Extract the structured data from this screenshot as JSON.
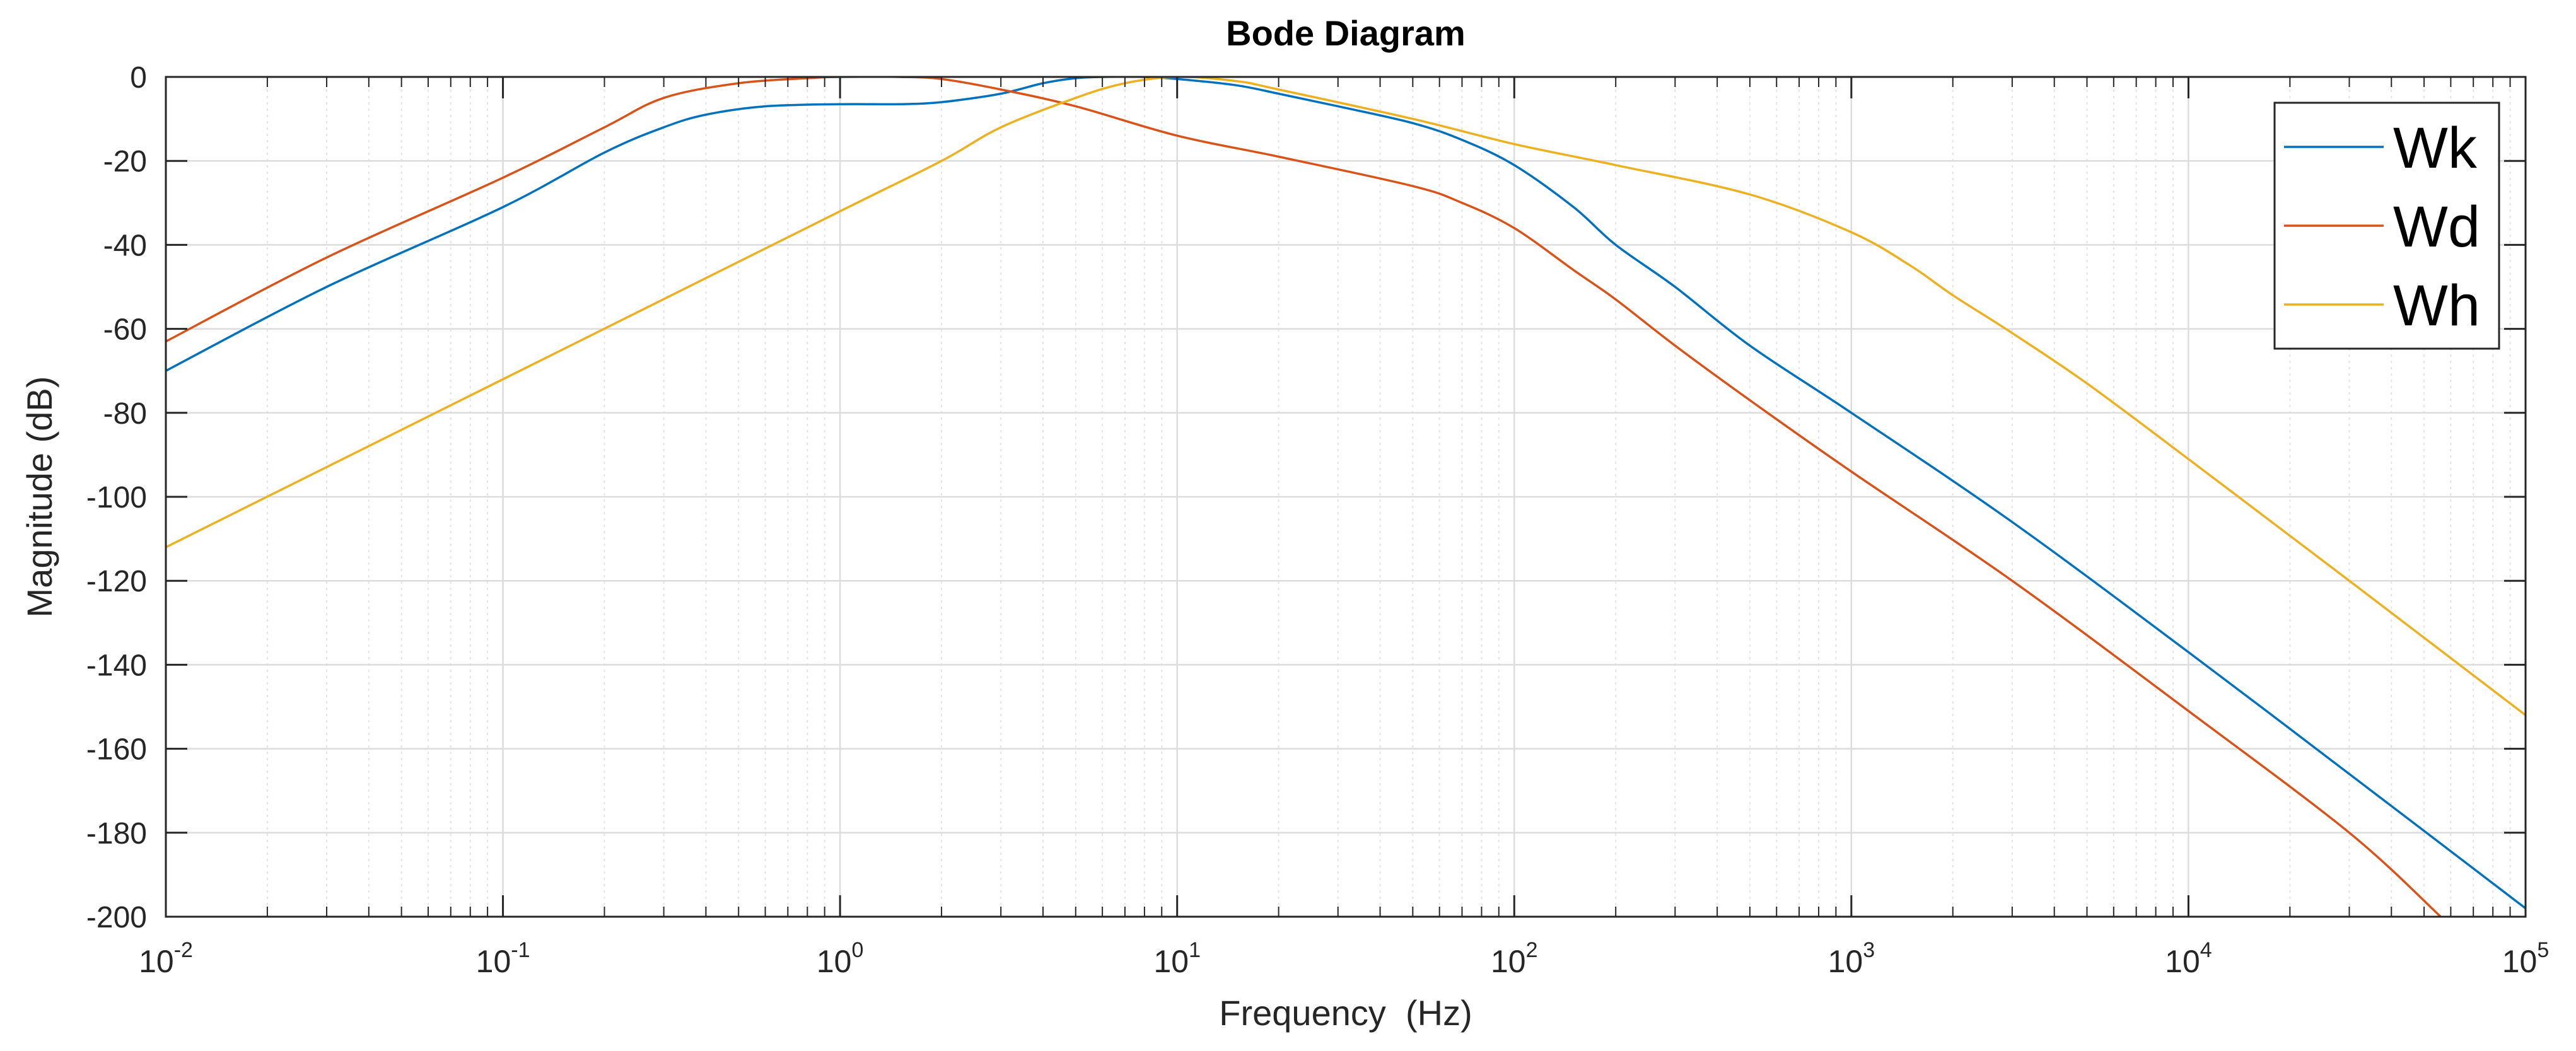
{
  "chart_data": {
    "type": "line",
    "title": "Bode Diagram",
    "xlabel": "Frequency  (Hz)",
    "ylabel": "Magnitude (dB)",
    "xscale": "log",
    "xlim": [
      0.01,
      100000
    ],
    "ylim": [
      -200,
      0
    ],
    "grid": true,
    "minor_grid_x": true,
    "legend_position": "top-right",
    "x_ticks": [
      {
        "value": 0.01,
        "base": "10",
        "exp": "-2"
      },
      {
        "value": 0.1,
        "base": "10",
        "exp": "-1"
      },
      {
        "value": 1,
        "base": "10",
        "exp": "0"
      },
      {
        "value": 10,
        "base": "10",
        "exp": "1"
      },
      {
        "value": 100,
        "base": "10",
        "exp": "2"
      },
      {
        "value": 1000,
        "base": "10",
        "exp": "3"
      },
      {
        "value": 10000,
        "base": "10",
        "exp": "4"
      },
      {
        "value": 100000,
        "base": "10",
        "exp": "5"
      }
    ],
    "y_ticks": [
      0,
      -20,
      -40,
      -60,
      -80,
      -100,
      -120,
      -140,
      -160,
      -180,
      -200
    ],
    "series": [
      {
        "name": "Wk",
        "color": "#0072BD",
        "points": [
          [
            0.01,
            -70
          ],
          [
            0.03,
            -50
          ],
          [
            0.1,
            -31
          ],
          [
            0.2,
            -18
          ],
          [
            0.3,
            -12
          ],
          [
            0.4,
            -9
          ],
          [
            0.6,
            -7
          ],
          [
            1,
            -6.5
          ],
          [
            1.5,
            -6.5
          ],
          [
            2,
            -6
          ],
          [
            3,
            -4
          ],
          [
            4,
            -1.5
          ],
          [
            5,
            -0.3
          ],
          [
            6,
            0
          ],
          [
            8,
            0
          ],
          [
            10,
            -0.5
          ],
          [
            15,
            -2
          ],
          [
            20,
            -4
          ],
          [
            30,
            -7
          ],
          [
            50,
            -11
          ],
          [
            70,
            -15
          ],
          [
            100,
            -21
          ],
          [
            150,
            -31
          ],
          [
            200,
            -40
          ],
          [
            300,
            -50
          ],
          [
            500,
            -64
          ],
          [
            1000,
            -80
          ],
          [
            3000,
            -106
          ],
          [
            10000,
            -137
          ],
          [
            30000,
            -166
          ],
          [
            100000,
            -198
          ]
        ]
      },
      {
        "name": "Wd",
        "color": "#D95319",
        "points": [
          [
            0.01,
            -63
          ],
          [
            0.03,
            -43
          ],
          [
            0.1,
            -24
          ],
          [
            0.2,
            -12
          ],
          [
            0.3,
            -5
          ],
          [
            0.5,
            -1.5
          ],
          [
            0.8,
            -0.3
          ],
          [
            1,
            0
          ],
          [
            1.5,
            0
          ],
          [
            2,
            -0.5
          ],
          [
            3,
            -3
          ],
          [
            5,
            -7
          ],
          [
            10,
            -14
          ],
          [
            20,
            -19
          ],
          [
            50,
            -26
          ],
          [
            70,
            -30
          ],
          [
            100,
            -36
          ],
          [
            150,
            -46
          ],
          [
            200,
            -53
          ],
          [
            300,
            -64
          ],
          [
            500,
            -77
          ],
          [
            1000,
            -94
          ],
          [
            3000,
            -120
          ],
          [
            10000,
            -151
          ],
          [
            30000,
            -180
          ],
          [
            56000,
            -200
          ]
        ]
      },
      {
        "name": "Wh",
        "color": "#EDB120",
        "points": [
          [
            0.01,
            -112
          ],
          [
            0.1,
            -72
          ],
          [
            1,
            -32
          ],
          [
            2,
            -20
          ],
          [
            3,
            -12
          ],
          [
            5,
            -5
          ],
          [
            7,
            -1.5
          ],
          [
            10,
            0
          ],
          [
            15,
            -1
          ],
          [
            20,
            -3
          ],
          [
            50,
            -10
          ],
          [
            100,
            -16
          ],
          [
            200,
            -21
          ],
          [
            500,
            -28
          ],
          [
            1000,
            -37
          ],
          [
            1500,
            -45
          ],
          [
            2000,
            -52
          ],
          [
            3000,
            -61
          ],
          [
            5000,
            -73
          ],
          [
            10000,
            -91
          ],
          [
            30000,
            -120
          ],
          [
            100000,
            -152
          ]
        ]
      }
    ]
  }
}
